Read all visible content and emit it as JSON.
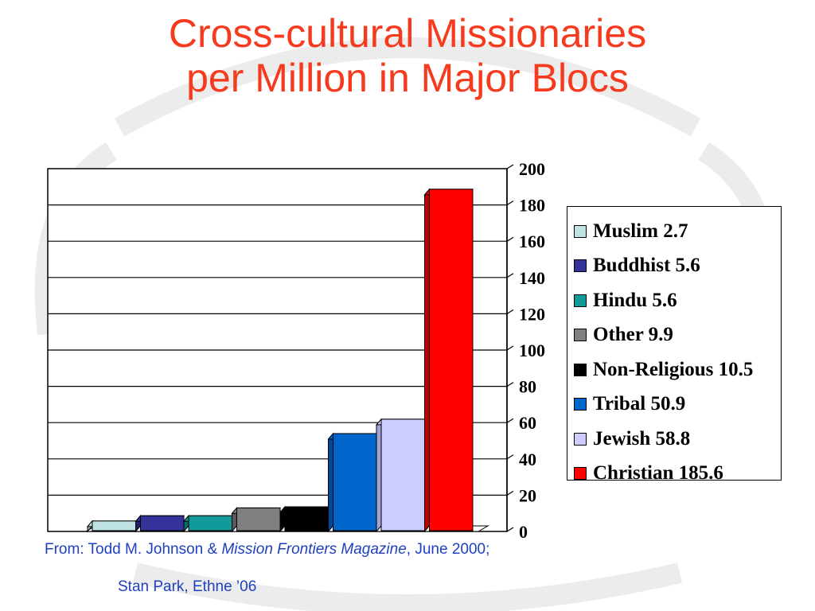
{
  "title": {
    "line1": "Cross-cultural Missionaries",
    "line2": "per Million in Major Blocs"
  },
  "chart_data": {
    "type": "bar",
    "title": "Cross-cultural Missionaries per Million in Major Blocs",
    "xlabel": "",
    "ylabel": "",
    "ylim": [
      0,
      200
    ],
    "yticks": [
      0,
      20,
      40,
      60,
      80,
      100,
      120,
      140,
      160,
      180,
      200
    ],
    "grid": true,
    "legend_position": "right",
    "three_d": true,
    "series": [
      {
        "name": "Muslim 2.7",
        "value": 2.7,
        "color": "#bfe3e3",
        "side_color": "#8ebcbc"
      },
      {
        "name": "Buddhist 5.6",
        "value": 5.6,
        "color": "#333399",
        "side_color": "#1f1f66"
      },
      {
        "name": "Hindu 5.6",
        "value": 5.6,
        "color": "#129a9a",
        "side_color": "#0b6b6b"
      },
      {
        "name": "Other 9.9",
        "value": 9.9,
        "color": "#808080",
        "side_color": "#595959"
      },
      {
        "name": "Non-Religious 10.5",
        "value": 10.5,
        "color": "#000000",
        "side_color": "#000000"
      },
      {
        "name": "Tribal 50.9",
        "value": 50.9,
        "color": "#0066cc",
        "side_color": "#004a99"
      },
      {
        "name": "Jewish 58.8",
        "value": 58.8,
        "color": "#ccccff",
        "side_color": "#a3a3d6"
      },
      {
        "name": "Christian 185.6",
        "value": 185.6,
        "color": "#ff0000",
        "side_color": "#c00000"
      }
    ]
  },
  "source": {
    "prefix": "From: Todd M. Johnson & ",
    "magazine": "Mission Frontiers Magazine",
    "suffix": ", June 2000;",
    "line2": "Stan Park, Ethne ’06"
  }
}
